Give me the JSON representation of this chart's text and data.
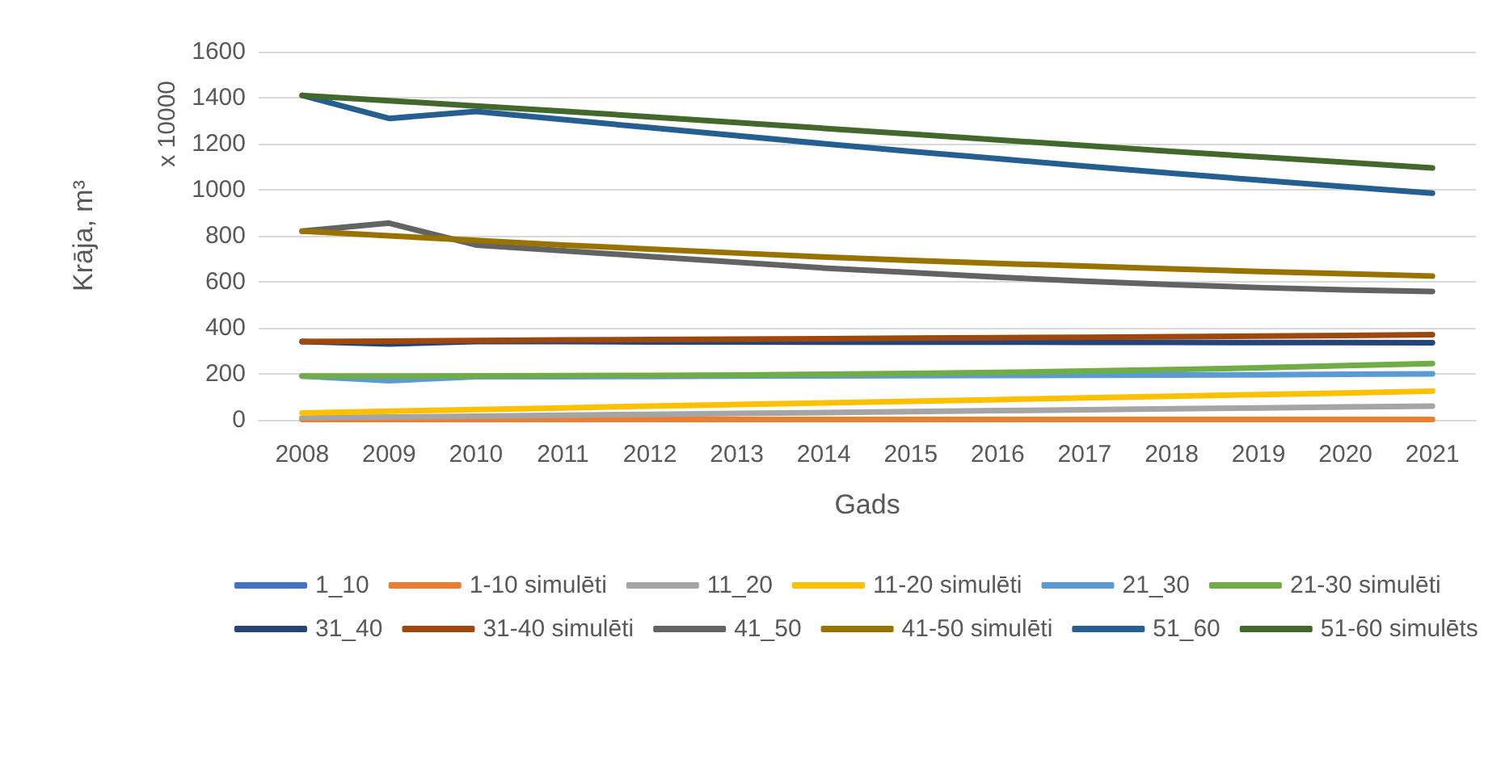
{
  "chart_data": {
    "type": "line",
    "xlabel": "Gads",
    "ylabel": "Krāja, m³",
    "annotations": [
      "x 10000"
    ],
    "categories": [
      "2008",
      "2009",
      "2010",
      "2011",
      "2012",
      "2013",
      "2014",
      "2015",
      "2016",
      "2017",
      "2018",
      "2019",
      "2020",
      "2021"
    ],
    "ylim": [
      0,
      1600
    ],
    "yticks": [
      0,
      200,
      400,
      600,
      800,
      1000,
      1200,
      1400,
      1600
    ],
    "grid": "y",
    "legend": "bottom",
    "marker": "none",
    "line_style": "solid",
    "series": [
      {
        "name": "1_10",
        "color": "#4472c4",
        "values": [
          null,
          null,
          null,
          null,
          null,
          null,
          null,
          null,
          null,
          null,
          null,
          null,
          null,
          null
        ]
      },
      {
        "name": "1-10 simulēti",
        "color": "#ed7d31",
        "values": [
          2,
          2,
          2,
          2,
          2,
          2,
          2,
          2,
          2,
          2,
          2,
          2,
          2,
          2
        ]
      },
      {
        "name": "11_20",
        "color": "#a5a5a5",
        "values": [
          10,
          12,
          16,
          20,
          24,
          28,
          32,
          36,
          40,
          44,
          48,
          52,
          56,
          60
        ]
      },
      {
        "name": "11-20 simulēti",
        "color": "#ffc000",
        "values": [
          30,
          38,
          45,
          52,
          60,
          67,
          74,
          81,
          88,
          96,
          103,
          110,
          117,
          125
        ]
      },
      {
        "name": "21_30",
        "color": "#5b9bd5",
        "values": [
          190,
          170,
          188,
          188,
          189,
          190,
          191,
          192,
          193,
          194,
          195,
          196,
          198,
          200
        ]
      },
      {
        "name": "21-30 simulēti",
        "color": "#70ad47",
        "values": [
          190,
          190,
          191,
          192,
          193,
          195,
          198,
          202,
          206,
          212,
          218,
          226,
          236,
          245
        ]
      },
      {
        "name": "31_40",
        "color": "#264478",
        "values": [
          340,
          330,
          340,
          340,
          339,
          339,
          338,
          338,
          338,
          337,
          337,
          336,
          336,
          335
        ]
      },
      {
        "name": "31-40 simulēti",
        "color": "#9e480e",
        "values": [
          340,
          342,
          345,
          347,
          349,
          351,
          353,
          355,
          357,
          359,
          361,
          364,
          367,
          370
        ]
      },
      {
        "name": "41_50",
        "color": "#636363",
        "values": [
          820,
          855,
          760,
          735,
          710,
          685,
          660,
          640,
          620,
          603,
          588,
          575,
          565,
          558
        ]
      },
      {
        "name": "41-50 simulēti",
        "color": "#997300",
        "values": [
          820,
          800,
          780,
          760,
          742,
          725,
          708,
          693,
          680,
          668,
          656,
          645,
          635,
          625
        ]
      },
      {
        "name": "51_60",
        "color": "#255e91",
        "values": [
          1410,
          1310,
          1340,
          1305,
          1270,
          1235,
          1200,
          1167,
          1135,
          1103,
          1072,
          1042,
          1013,
          985
        ]
      },
      {
        "name": "51-60 simulēts",
        "color": "#43682b",
        "values": [
          1410,
          1387,
          1364,
          1341,
          1317,
          1292,
          1267,
          1242,
          1217,
          1192,
          1167,
          1143,
          1119,
          1095
        ]
      }
    ]
  }
}
